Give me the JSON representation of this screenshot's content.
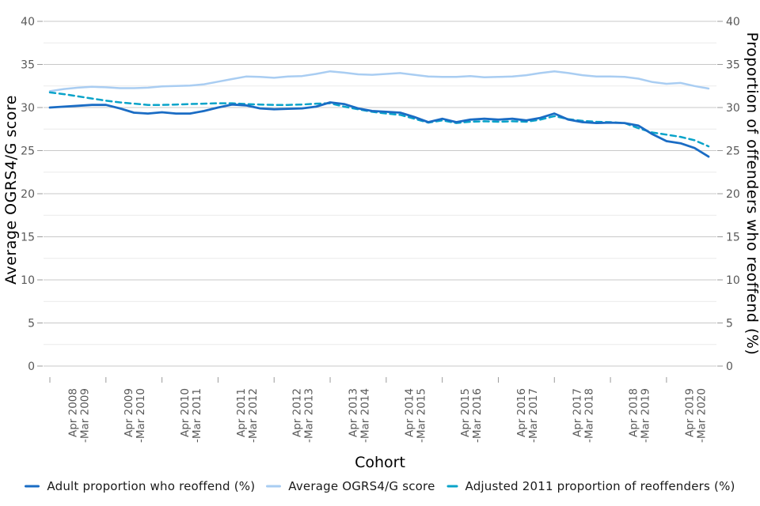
{
  "chart_data": {
    "type": "line",
    "title": "",
    "x_axis": {
      "title": "Cohort",
      "n_points": 48,
      "points_per_year": 4,
      "labels": [
        [
          "Apr 2008",
          "-Mar 2009"
        ],
        [
          "Apr 2009",
          "-Mar 2010"
        ],
        [
          "Apr 2010",
          "-Mar 2011"
        ],
        [
          "Apr 2011",
          "-Mar 2012"
        ],
        [
          "Apr 2012",
          "-Mar 2013"
        ],
        [
          "Apr 2013",
          "-Mar 2014"
        ],
        [
          "Apr 2014",
          "-Mar 2015"
        ],
        [
          "Apr 2015",
          "-Mar 2016"
        ],
        [
          "Apr 2016",
          "-Mar 2017"
        ],
        [
          "Apr 2017",
          "-Mar 2018"
        ],
        [
          "Apr 2018",
          "-Mar 2019"
        ],
        [
          "Apr 2019",
          "-Mar 2020"
        ]
      ],
      "label_point_indices": [
        2,
        6,
        10,
        14,
        18,
        22,
        26,
        30,
        34,
        38,
        42,
        46
      ],
      "tick_point_indices": [
        0,
        4,
        8,
        12,
        16,
        20,
        24,
        28,
        32,
        36,
        40,
        44
      ]
    },
    "y_axis_left": {
      "title": "Average OGRS4/G score",
      "min": 0,
      "max": 40,
      "major_step": 5,
      "minor_step": 2.5,
      "tick_labels": [
        "0",
        "5",
        "10",
        "15",
        "20",
        "25",
        "30",
        "35",
        "40"
      ]
    },
    "y_axis_right": {
      "title": "Proportion of offenders who reoffend (%)",
      "min": 0,
      "max": 40,
      "major_step": 5,
      "minor_step": 2.5,
      "tick_labels": [
        "0",
        "5",
        "10",
        "15",
        "20",
        "25",
        "30",
        "35",
        "40"
      ]
    },
    "grid": {
      "major_color": "#c9c9c9",
      "minor_color": "#eaeaea",
      "tick_color": "#9b9b9b",
      "tick_label_color": "#595959"
    },
    "legend_position": "bottom",
    "series": [
      {
        "name": "Adult proportion who reoffend (%)",
        "color": "#1a6cc4",
        "style": "solid",
        "values": [
          30.0,
          30.1,
          30.2,
          30.3,
          30.3,
          29.9,
          29.4,
          29.3,
          29.45,
          29.3,
          29.3,
          29.6,
          30.0,
          30.35,
          30.25,
          29.9,
          29.8,
          29.85,
          29.9,
          30.1,
          30.6,
          30.4,
          29.9,
          29.6,
          29.5,
          29.4,
          28.9,
          28.3,
          28.7,
          28.3,
          28.6,
          28.7,
          28.6,
          28.7,
          28.5,
          28.8,
          29.3,
          28.6,
          28.3,
          28.2,
          28.25,
          28.2,
          27.9,
          26.9,
          26.1,
          25.85,
          25.3,
          24.3
        ]
      },
      {
        "name": "Average OGRS4/G score",
        "color": "#a9cdf2",
        "style": "solid",
        "values": [
          31.9,
          32.15,
          32.3,
          32.4,
          32.35,
          32.25,
          32.25,
          32.3,
          32.45,
          32.5,
          32.55,
          32.7,
          33.0,
          33.3,
          33.6,
          33.55,
          33.45,
          33.6,
          33.65,
          33.9,
          34.2,
          34.05,
          33.85,
          33.8,
          33.9,
          34.0,
          33.8,
          33.6,
          33.55,
          33.55,
          33.65,
          33.5,
          33.55,
          33.6,
          33.75,
          34.0,
          34.2,
          34.0,
          33.75,
          33.6,
          33.6,
          33.55,
          33.35,
          32.95,
          32.75,
          32.85,
          32.5,
          32.2
        ]
      },
      {
        "name": "Adjusted 2011 proportion of reoffenders (%)",
        "color": "#09a3c9",
        "style": "dashed",
        "values": [
          31.75,
          31.55,
          31.3,
          31.05,
          30.8,
          30.6,
          30.45,
          30.3,
          30.3,
          30.35,
          30.4,
          30.45,
          30.5,
          30.5,
          30.4,
          30.35,
          30.3,
          30.3,
          30.35,
          30.45,
          30.5,
          30.1,
          29.8,
          29.5,
          29.3,
          29.15,
          28.7,
          28.25,
          28.5,
          28.2,
          28.35,
          28.4,
          28.35,
          28.4,
          28.35,
          28.6,
          29.0,
          28.65,
          28.45,
          28.35,
          28.3,
          28.2,
          27.6,
          27.1,
          26.85,
          26.6,
          26.2,
          25.5
        ]
      }
    ]
  }
}
